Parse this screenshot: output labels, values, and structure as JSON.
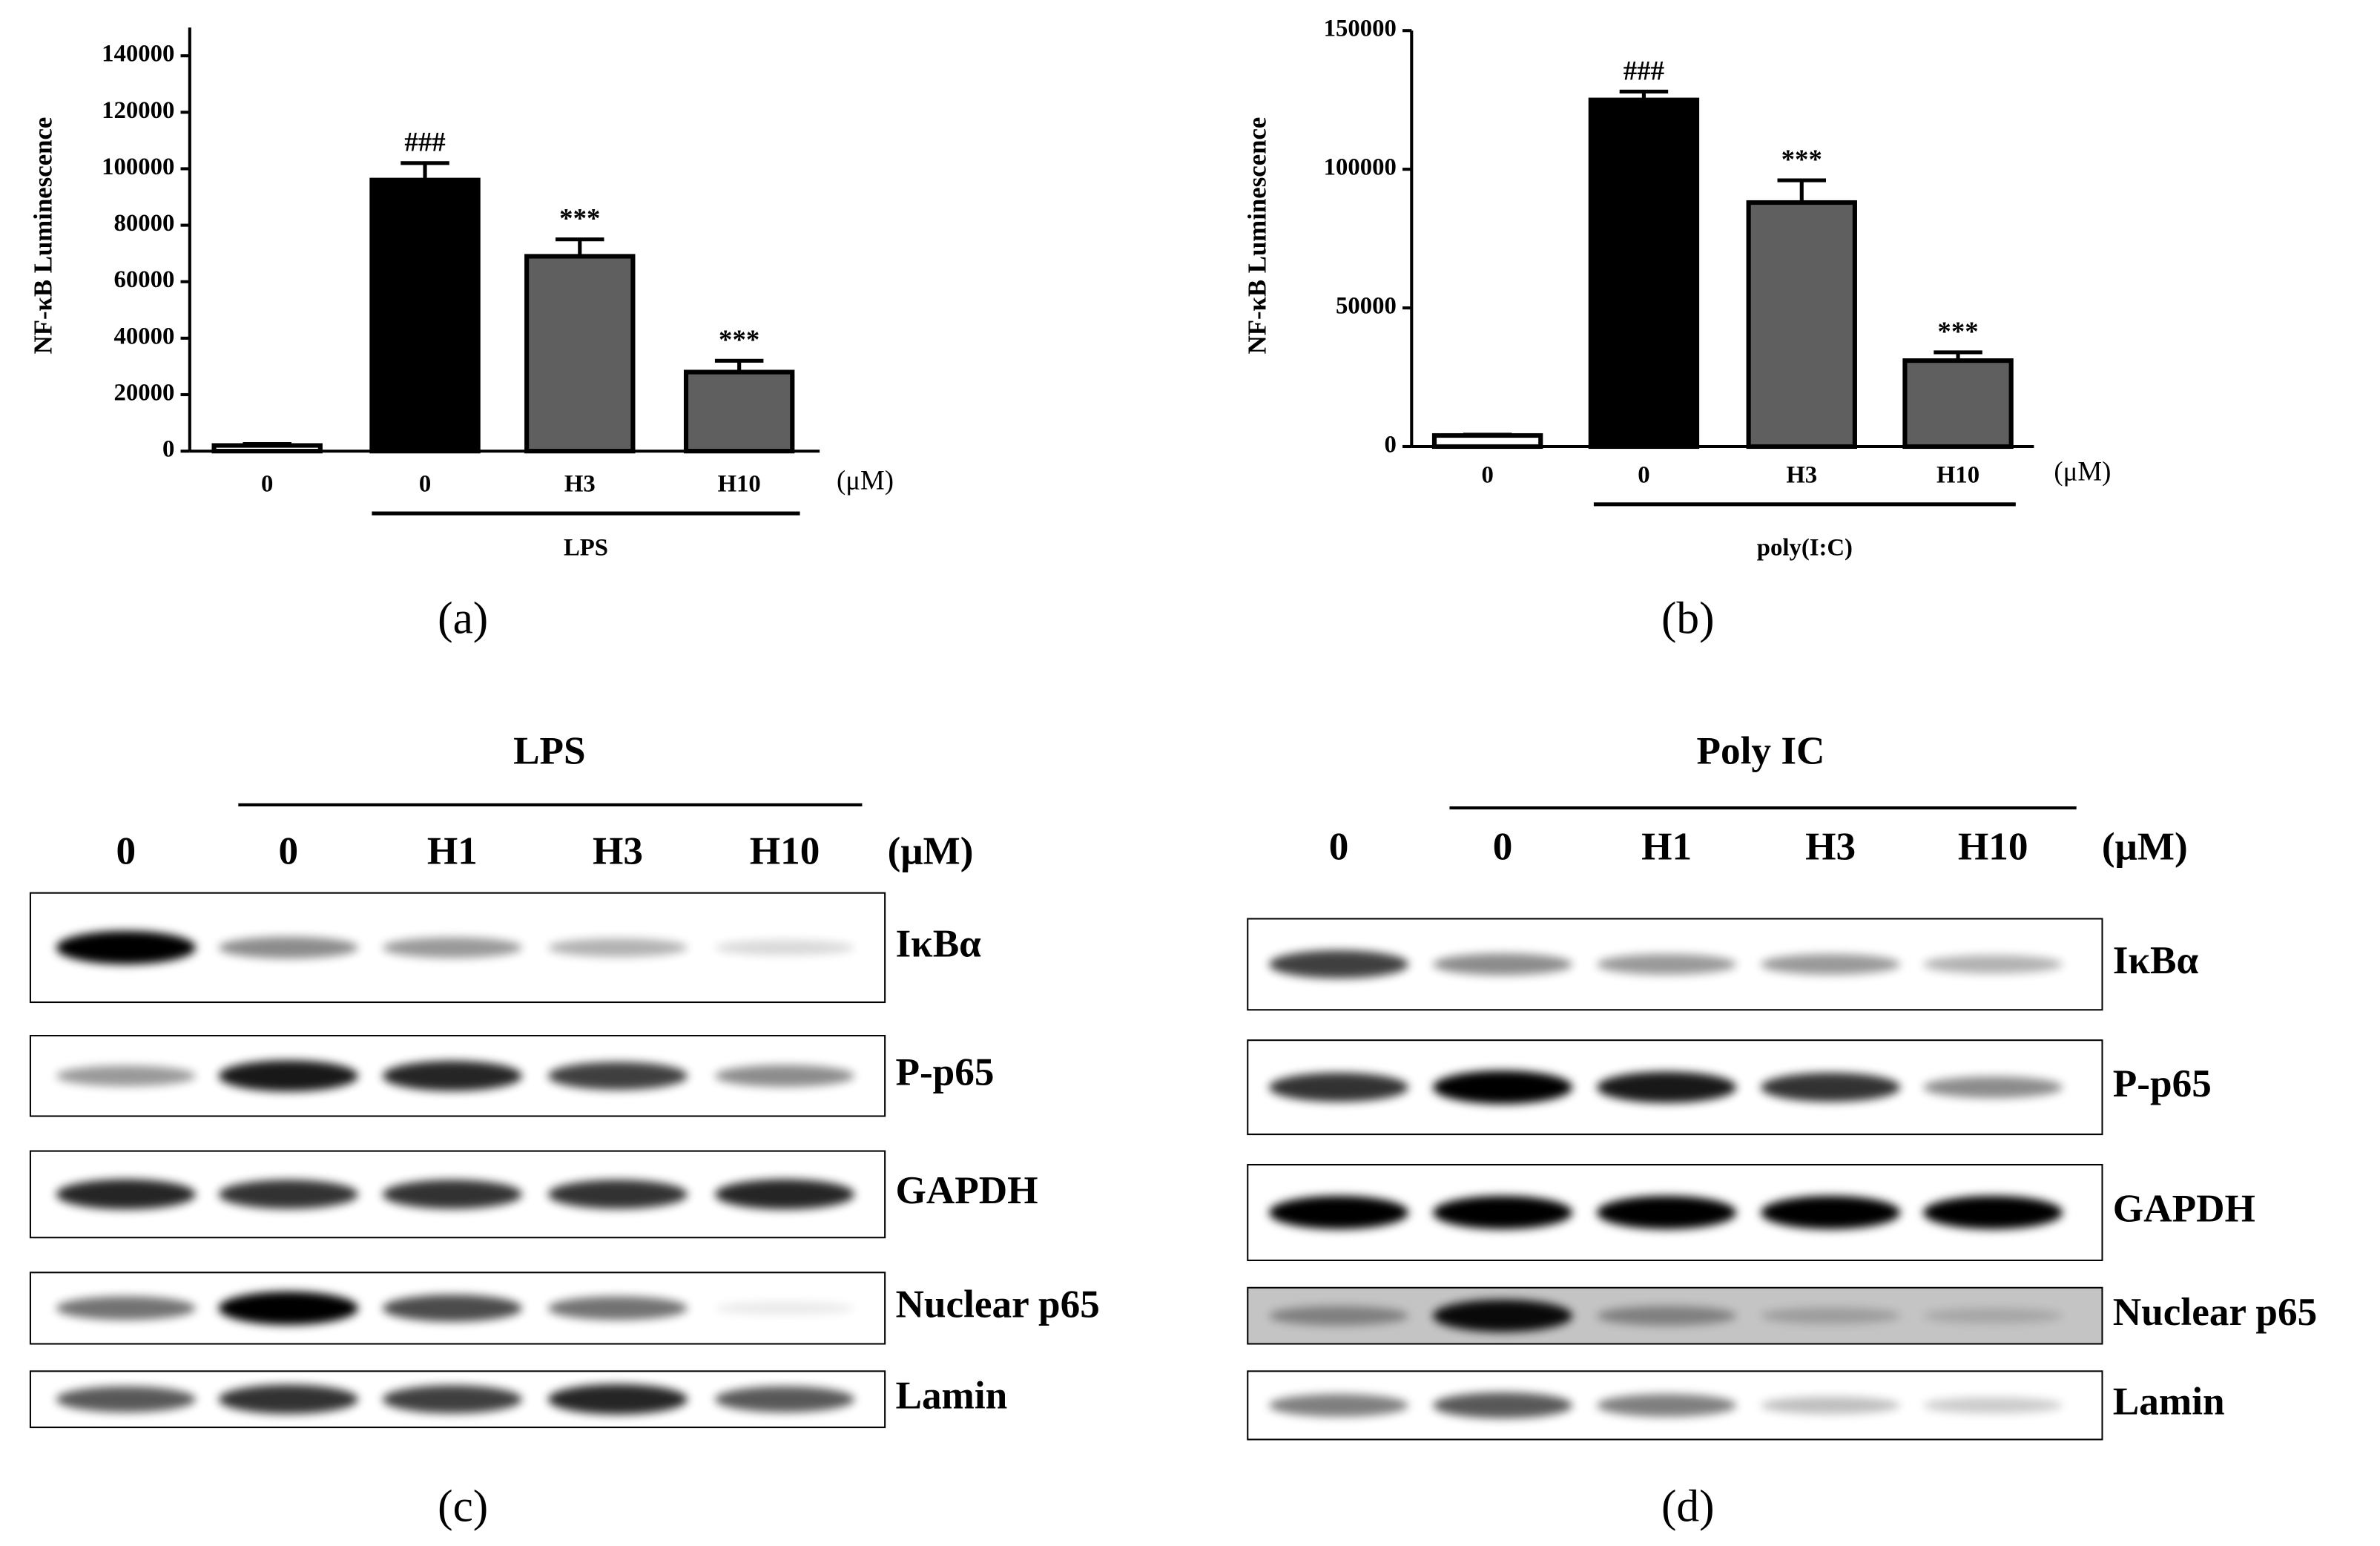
{
  "chart_data": [
    {
      "type": "bar",
      "label": "(a)",
      "ylabel": "NF-κB Luminescence",
      "categories": [
        "0",
        "0",
        "H3",
        "H10"
      ],
      "unit": "(μM)",
      "group": "LPS",
      "values": [
        2000,
        96000,
        69000,
        28000
      ],
      "errors": [
        500,
        6000,
        6000,
        4000
      ],
      "annotations": [
        null,
        "###",
        "***",
        "***"
      ],
      "colors": [
        "#ffffff",
        "#000000",
        "#5f5f5f",
        "#5f5f5f"
      ],
      "ylim": [
        0,
        150000
      ],
      "yticks": [
        0,
        20000,
        40000,
        60000,
        80000,
        100000,
        120000,
        140000
      ]
    },
    {
      "type": "bar",
      "label": "(b)",
      "ylabel": "NF-κB Luminescence",
      "categories": [
        "0",
        "0",
        "H3",
        "H10"
      ],
      "unit": "(μM)",
      "group": "poly(I:C)",
      "values": [
        4000,
        125000,
        88000,
        31000
      ],
      "errors": [
        300,
        3000,
        8000,
        3000
      ],
      "annotations": [
        null,
        "###",
        "***",
        "***"
      ],
      "colors": [
        "#ffffff",
        "#000000",
        "#5f5f5f",
        "#5f5f5f"
      ],
      "ylim": [
        0,
        150000
      ],
      "yticks": [
        0,
        50000,
        100000,
        150000
      ]
    }
  ],
  "blots": [
    {
      "label": "(c)",
      "title": "LPS",
      "lanes": [
        "0",
        "0",
        "H1",
        "H3",
        "H10"
      ],
      "unit": "(μM)",
      "rows": [
        "IκBα",
        "P-p65",
        "GAPDH",
        "Nuclear p65",
        "Lamin"
      ]
    },
    {
      "label": "(d)",
      "title": "Poly IC",
      "lanes": [
        "0",
        "0",
        "H1",
        "H3",
        "H10"
      ],
      "unit": "(μM)",
      "rows": [
        "IκBα",
        "P-p65",
        "GAPDH",
        "Nuclear p65",
        "Lamin"
      ]
    }
  ]
}
